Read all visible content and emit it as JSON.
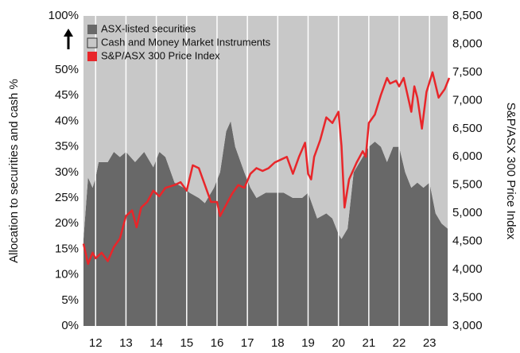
{
  "chart_data": {
    "type": "area",
    "y_label": "Allocation to securities and cash %",
    "y2_label": "S&P/ASX 300 Price Index",
    "xlim": [
      11.6,
      23.65
    ],
    "xticks": [
      12,
      13,
      14,
      15,
      16,
      17,
      18,
      19,
      20,
      21,
      22,
      23
    ],
    "xgrid": true,
    "ylim": [
      0,
      100
    ],
    "yticks": [
      {
        "value": 0,
        "label": "0%"
      },
      {
        "value": 5,
        "label": "5%"
      },
      {
        "value": 10,
        "label": "10%"
      },
      {
        "value": 15,
        "label": "15%"
      },
      {
        "value": 20,
        "label": "20%"
      },
      {
        "value": 25,
        "label": "25%"
      },
      {
        "value": 30,
        "label": "30%"
      },
      {
        "value": 35,
        "label": "35%"
      },
      {
        "value": 40,
        "label": "40%"
      },
      {
        "value": 45,
        "label": "45%"
      },
      {
        "value": 50,
        "label": "50%"
      },
      {
        "value": 100,
        "label": "100%"
      }
    ],
    "y_break": [
      50,
      100
    ],
    "y2lim": [
      3000,
      8500
    ],
    "y2ticks": [
      {
        "value": 3000,
        "label": "3,000"
      },
      {
        "value": 3500,
        "label": "3,500"
      },
      {
        "value": 4000,
        "label": "4,000"
      },
      {
        "value": 4500,
        "label": "4,500"
      },
      {
        "value": 5000,
        "label": "5,000"
      },
      {
        "value": 5500,
        "label": "5,500"
      },
      {
        "value": 6000,
        "label": "6,000"
      },
      {
        "value": 6500,
        "label": "6,500"
      },
      {
        "value": 7000,
        "label": "7,000"
      },
      {
        "value": 7500,
        "label": "7,500"
      },
      {
        "value": 8000,
        "label": "8,000"
      },
      {
        "value": 8500,
        "label": "8,500"
      }
    ],
    "legend": "upper left",
    "series": [
      {
        "name": "ASX-listed securities",
        "color": "#686868",
        "kind": "area",
        "x": [
          11.6,
          11.75,
          11.9,
          12.0,
          12.1,
          12.4,
          12.6,
          12.8,
          13.0,
          13.3,
          13.6,
          13.9,
          14.1,
          14.3,
          14.6,
          14.9,
          15.1,
          15.4,
          15.6,
          15.9,
          16.1,
          16.3,
          16.45,
          16.6,
          16.9,
          17.1,
          17.3,
          17.6,
          17.9,
          18.2,
          18.5,
          18.8,
          19.0,
          19.3,
          19.6,
          19.8,
          20.0,
          20.1,
          20.3,
          20.5,
          20.8,
          21.0,
          21.2,
          21.4,
          21.6,
          21.8,
          22.0,
          22.2,
          22.4,
          22.6,
          22.8,
          23.0,
          23.2,
          23.4,
          23.6
        ],
        "values": [
          17,
          29,
          27,
          29,
          32,
          32,
          34,
          33,
          34,
          32,
          34,
          31,
          34,
          33,
          28,
          27,
          26,
          25,
          24,
          27,
          30,
          38,
          40,
          35,
          30,
          27,
          25,
          26,
          26,
          26,
          25,
          25,
          26,
          21,
          22,
          21,
          18,
          17,
          19,
          30,
          33,
          35,
          36,
          35,
          32,
          35,
          35,
          30,
          27,
          28,
          27,
          28,
          22,
          20,
          19
        ]
      },
      {
        "name": "Cash and Money Market Instruments",
        "color": "#c8c8c8",
        "kind": "area",
        "stacked": true,
        "x": [
          11.6,
          11.75,
          11.9,
          12.0,
          12.1,
          12.4,
          12.6,
          12.8,
          13.0,
          13.3,
          13.6,
          13.9,
          14.1,
          14.3,
          14.6,
          14.9,
          15.1,
          15.4,
          15.6,
          15.9,
          16.1,
          16.3,
          16.45,
          16.6,
          16.9,
          17.1,
          17.3,
          17.6,
          17.9,
          18.2,
          18.5,
          18.8,
          19.0,
          19.3,
          19.6,
          19.8,
          20.0,
          20.1,
          20.3,
          20.5,
          20.8,
          21.0,
          21.2,
          21.4,
          21.6,
          21.8,
          22.0,
          22.2,
          22.4,
          22.6,
          22.8,
          23.0,
          23.2,
          23.4,
          23.6
        ],
        "values": [
          83,
          71,
          73,
          71,
          68,
          68,
          66,
          67,
          66,
          68,
          66,
          69,
          66,
          67,
          72,
          73,
          74,
          75,
          76,
          73,
          70,
          62,
          60,
          65,
          70,
          73,
          75,
          74,
          74,
          74,
          75,
          75,
          74,
          79,
          78,
          79,
          82,
          83,
          81,
          70,
          67,
          65,
          64,
          65,
          68,
          65,
          65,
          70,
          73,
          72,
          73,
          72,
          78,
          80,
          81
        ]
      },
      {
        "name": "S&P/ASX 300 Price Index",
        "color": "#e8262a",
        "kind": "line",
        "axis": "y2",
        "x": [
          11.6,
          11.75,
          11.9,
          12.0,
          12.2,
          12.4,
          12.6,
          12.8,
          13.0,
          13.2,
          13.35,
          13.5,
          13.7,
          13.9,
          14.1,
          14.3,
          14.6,
          14.8,
          15.0,
          15.2,
          15.4,
          15.6,
          15.8,
          16.0,
          16.1,
          16.3,
          16.5,
          16.7,
          16.9,
          17.1,
          17.3,
          17.5,
          17.7,
          17.9,
          18.1,
          18.3,
          18.5,
          18.7,
          18.9,
          19.0,
          19.1,
          19.2,
          19.4,
          19.6,
          19.8,
          20.0,
          20.1,
          20.2,
          20.35,
          20.6,
          20.8,
          20.9,
          21.0,
          21.2,
          21.4,
          21.6,
          21.7,
          21.9,
          22.0,
          22.15,
          22.4,
          22.5,
          22.6,
          22.75,
          22.9,
          23.1,
          23.3,
          23.5,
          23.65
        ],
        "values": [
          4460,
          4100,
          4300,
          4200,
          4300,
          4150,
          4400,
          4550,
          4950,
          5050,
          4750,
          5100,
          5200,
          5400,
          5300,
          5450,
          5500,
          5550,
          5400,
          5850,
          5800,
          5500,
          5200,
          5200,
          4950,
          5150,
          5350,
          5500,
          5450,
          5700,
          5800,
          5750,
          5800,
          5900,
          5950,
          6000,
          5700,
          6000,
          6250,
          5700,
          5600,
          6000,
          6300,
          6700,
          6600,
          6800,
          6200,
          5100,
          5600,
          5900,
          6100,
          6000,
          6600,
          6750,
          7100,
          7400,
          7300,
          7350,
          7250,
          7400,
          6800,
          7250,
          7050,
          6500,
          7150,
          7500,
          7050,
          7200,
          7400
        ]
      }
    ]
  }
}
